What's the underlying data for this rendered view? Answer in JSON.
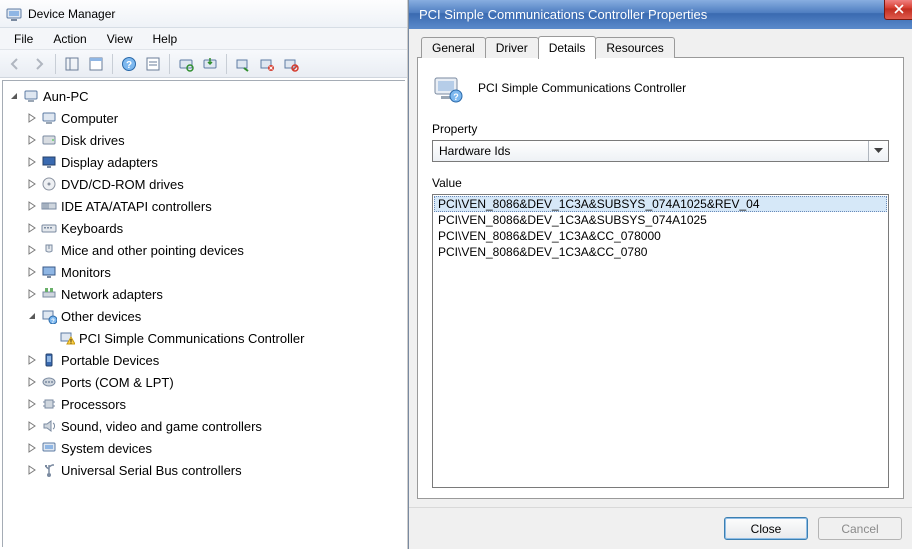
{
  "colors": {
    "window_bg": "#f0f0f0",
    "titlebar_grad_top": "#88aee0",
    "titlebar_grad_bot": "#5a8acb",
    "close_grad_top": "#f08080",
    "close_grad_bot": "#e05a4c",
    "selection_bg": "#d6e8f8",
    "border_gray": "#9a9a9a"
  },
  "device_manager": {
    "title": "Device Manager",
    "menu": {
      "file": "File",
      "action": "Action",
      "view": "View",
      "help": "Help"
    },
    "tree_root": "Aun-PC",
    "categories": [
      {
        "label": "Computer",
        "icon": "computer"
      },
      {
        "label": "Disk drives",
        "icon": "disk"
      },
      {
        "label": "Display adapters",
        "icon": "display"
      },
      {
        "label": "DVD/CD-ROM drives",
        "icon": "optical"
      },
      {
        "label": "IDE ATA/ATAPI controllers",
        "icon": "ide"
      },
      {
        "label": "Keyboards",
        "icon": "keyboard"
      },
      {
        "label": "Mice and other pointing devices",
        "icon": "mouse"
      },
      {
        "label": "Monitors",
        "icon": "monitor"
      },
      {
        "label": "Network adapters",
        "icon": "network"
      },
      {
        "label": "Other devices",
        "icon": "other",
        "expanded": true,
        "children": [
          {
            "label": "PCI Simple Communications Controller",
            "icon": "warning"
          }
        ]
      },
      {
        "label": "Portable Devices",
        "icon": "portable"
      },
      {
        "label": "Ports (COM & LPT)",
        "icon": "ports"
      },
      {
        "label": "Processors",
        "icon": "cpu"
      },
      {
        "label": "Sound, video and game controllers",
        "icon": "sound"
      },
      {
        "label": "System devices",
        "icon": "system"
      },
      {
        "label": "Universal Serial Bus controllers",
        "icon": "usb"
      }
    ]
  },
  "properties": {
    "title": "PCI Simple Communications Controller Properties",
    "tabs": {
      "general": "General",
      "driver": "Driver",
      "details": "Details",
      "resources": "Resources"
    },
    "active_tab": "details",
    "device_name": "PCI Simple Communications Controller",
    "property_label": "Property",
    "property_value": "Hardware Ids",
    "value_label": "Value",
    "values": [
      "PCI\\VEN_8086&DEV_1C3A&SUBSYS_074A1025&REV_04",
      "PCI\\VEN_8086&DEV_1C3A&SUBSYS_074A1025",
      "PCI\\VEN_8086&DEV_1C3A&CC_078000",
      "PCI\\VEN_8086&DEV_1C3A&CC_0780"
    ],
    "selected_value_index": 0,
    "close_label": "Close",
    "cancel_label": "Cancel"
  }
}
